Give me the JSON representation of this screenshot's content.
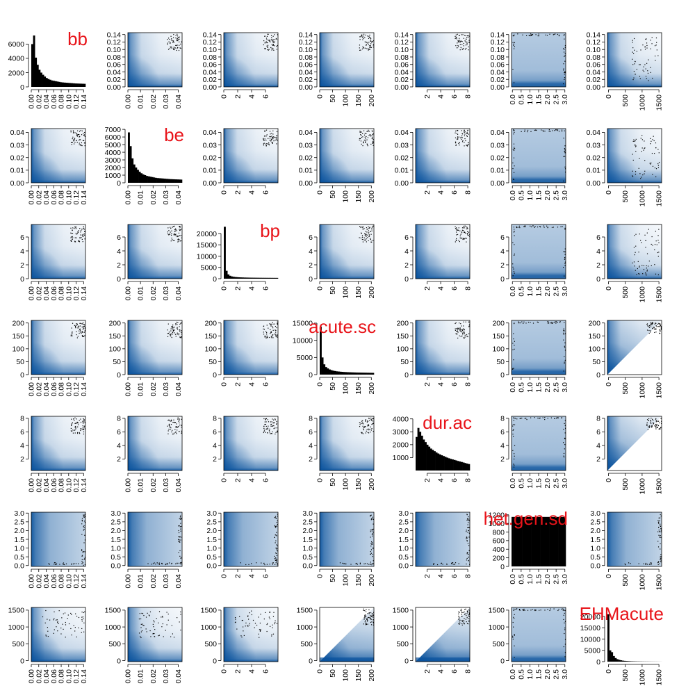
{
  "chart_data": {
    "type": "scatter-matrix",
    "title": "",
    "colors": {
      "density_light": "#ffffff",
      "density_dark": "#08519c",
      "histogram": "#000000",
      "label": "#e8141a",
      "outlier": "#000000"
    },
    "variables": [
      {
        "name": "bb",
        "range": [
          0,
          0.145
        ],
        "ticks": [
          0,
          0.02,
          0.04,
          0.06,
          0.08,
          0.1,
          0.12,
          0.14
        ],
        "tick_labels": [
          "0.00",
          "0.02",
          "0.04",
          "0.06",
          "0.08",
          "0.10",
          "0.12",
          "0.14"
        ],
        "hist": {
          "ylim": [
            0,
            7600
          ],
          "yticks": [
            0,
            2000,
            4000,
            6000
          ],
          "ytick_labels": [
            "0",
            "2000",
            "4000",
            "6000"
          ],
          "counts": [
            6000,
            7200,
            4100,
            3100,
            2400,
            2000,
            1700,
            1450,
            1250,
            1100,
            1000,
            900,
            850,
            800,
            750,
            700,
            650,
            620,
            600,
            580,
            560,
            540,
            520,
            500,
            480,
            470,
            460,
            450,
            440,
            430
          ]
        }
      },
      {
        "name": "be",
        "range": [
          0,
          0.043
        ],
        "ticks": [
          0,
          0.01,
          0.02,
          0.03,
          0.04
        ],
        "tick_labels": [
          "0.00",
          "0.01",
          "0.02",
          "0.03",
          "0.04"
        ],
        "hist": {
          "ylim": [
            0,
            7100
          ],
          "yticks": [
            0,
            1000,
            2000,
            3000,
            4000,
            5000,
            6000,
            7000
          ],
          "ytick_labels": [
            "0",
            "1000",
            "2000",
            "3000",
            "4000",
            "5000",
            "6000",
            "7000"
          ],
          "counts": [
            6600,
            4800,
            3200,
            2400,
            2000,
            1700,
            1450,
            1250,
            1100,
            1000,
            900,
            850,
            800,
            750,
            700,
            650,
            620,
            600,
            580,
            560,
            540,
            520,
            500,
            480,
            470,
            460,
            450,
            440,
            430,
            420
          ]
        }
      },
      {
        "name": "bp",
        "range": [
          0,
          7.8
        ],
        "ticks": [
          0,
          2,
          4,
          6
        ],
        "tick_labels": [
          "0",
          "2",
          "4",
          "6"
        ],
        "hist": {
          "ylim": [
            0,
            24000
          ],
          "yticks": [
            0,
            5000,
            10000,
            15000,
            20000
          ],
          "ytick_labels": [
            "0",
            "5000",
            "10000",
            "15000",
            "20000"
          ],
          "counts": [
            23000,
            3500,
            1900,
            1300,
            1000,
            850,
            750,
            680,
            620,
            580,
            550,
            520,
            500,
            480,
            460,
            450,
            440,
            430,
            420,
            410,
            400,
            395,
            390,
            385,
            380,
            375,
            370,
            365,
            360,
            355
          ]
        }
      },
      {
        "name": "acute.sc",
        "range": [
          0,
          210
        ],
        "ticks": [
          0,
          50,
          100,
          150,
          200
        ],
        "tick_labels": [
          "0",
          "50",
          "100",
          "150",
          "200"
        ],
        "hist": {
          "ylim": [
            0,
            15800
          ],
          "yticks": [
            0,
            5000,
            10000,
            15000
          ],
          "ytick_labels": [
            "0",
            "5000",
            "10000",
            "15000"
          ],
          "counts": [
            14000,
            5000,
            3000,
            2200,
            1800,
            1500,
            1300,
            1150,
            1050,
            950,
            900,
            850,
            800,
            760,
            730,
            700,
            680,
            660,
            640,
            620,
            600,
            590,
            580,
            570,
            560,
            550,
            540,
            530,
            520,
            510
          ]
        }
      },
      {
        "name": "dur.ac",
        "range": [
          0.3,
          8.3
        ],
        "ticks": [
          2,
          4,
          6,
          8
        ],
        "tick_labels": [
          "2",
          "4",
          "6",
          "8"
        ],
        "hist": {
          "ylim": [
            0,
            4200
          ],
          "yticks": [
            1000,
            2000,
            3000,
            4000
          ],
          "ytick_labels": [
            "1000",
            "2000",
            "3000",
            "4000"
          ],
          "counts": [
            2600,
            3300,
            3000,
            2700,
            2400,
            2200,
            2000,
            1850,
            1700,
            1600,
            1500,
            1400,
            1320,
            1250,
            1180,
            1120,
            1060,
            1000,
            950,
            900,
            860,
            820,
            780,
            740,
            700,
            660,
            620,
            580,
            540,
            500
          ]
        }
      },
      {
        "name": "het.gen.sd",
        "range": [
          -0.05,
          3.05
        ],
        "ticks": [
          0,
          0.5,
          1,
          1.5,
          2,
          2.5,
          3
        ],
        "tick_labels": [
          "0.0",
          "0.5",
          "1.0",
          "1.5",
          "2.0",
          "2.5",
          "3.0"
        ],
        "hist": {
          "ylim": [
            0,
            1260
          ],
          "yticks": [
            0,
            200,
            400,
            600,
            800,
            1000,
            1200
          ],
          "ytick_labels": [
            "0",
            "200",
            "400",
            "600",
            "800",
            "1000",
            "1200"
          ],
          "counts": [
            1150,
            1150,
            1150,
            1150,
            1150,
            1150,
            1150,
            1150,
            1150,
            1150,
            1150,
            1150,
            1150,
            1150,
            1150,
            1150,
            1150,
            1150,
            1150,
            1150,
            1150,
            1150,
            1150,
            1150,
            1150,
            1150,
            1150,
            1150,
            1150,
            1150
          ]
        }
      },
      {
        "name": "EHMacute",
        "range": [
          -30,
          1580
        ],
        "ticks": [
          0,
          500,
          1000,
          1500
        ],
        "tick_labels": [
          "0",
          "500",
          "1000",
          "1500"
        ],
        "hist": {
          "ylim": [
            0,
            24000
          ],
          "yticks": [
            0,
            5000,
            10000,
            15000,
            20000
          ],
          "ytick_labels": [
            "0",
            "5000",
            "10000",
            "15000",
            "20000"
          ],
          "counts": [
            21000,
            5000,
            4200,
            2500,
            1600,
            1100,
            800,
            600,
            450,
            350,
            280,
            230,
            190,
            160,
            140,
            120,
            100,
            90,
            80,
            70,
            60,
            55,
            50,
            45,
            40,
            35,
            30,
            25,
            20,
            15
          ]
        }
      }
    ]
  }
}
